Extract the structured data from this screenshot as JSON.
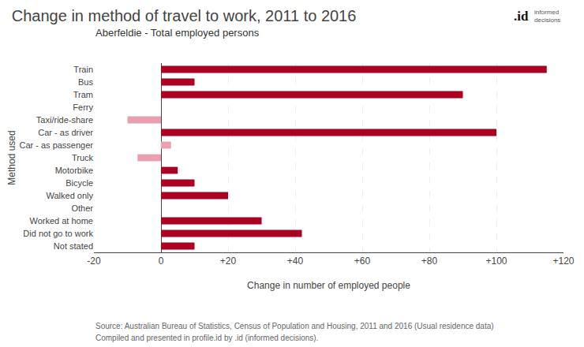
{
  "chart_data": {
    "type": "bar",
    "orientation": "horizontal",
    "title": "Change in method of travel to work, 2011 to 2016",
    "subtitle": "Aberfeldie - Total employed persons",
    "xlabel": "Change in number of employed people",
    "ylabel": "Method used",
    "annotations": [
      "Source: Australian Bureau of Statistics, Census of Population and Housing, 2011 and 2016 (Usual residence data)",
      "Compiled and presented in profile.id by .id (informed decisions).",
      ".id",
      "informed\ndecisions"
    ],
    "categories": [
      "Train",
      "Bus",
      "Tram",
      "Ferry",
      "Taxi/ride-share",
      "Car - as driver",
      "Car - as passenger",
      "Truck",
      "Motorbike",
      "Bicycle",
      "Walked only",
      "Other",
      "Worked at home",
      "Did not go to work",
      "Not stated"
    ],
    "values": [
      115,
      10,
      90,
      0,
      -10,
      100,
      3,
      -7,
      5,
      10,
      20,
      0,
      30,
      42,
      10
    ],
    "colors": [
      "#aa0022",
      "#aa0022",
      "#aa0022",
      "#aa0022",
      "#e8a0b0",
      "#aa0022",
      "#e8a0b0",
      "#e8a0b0",
      "#aa0022",
      "#aa0022",
      "#aa0022",
      "#aa0022",
      "#aa0022",
      "#aa0022",
      "#aa0022"
    ],
    "xlim": [
      -20,
      120
    ],
    "xticks": [
      -20,
      0,
      {
        "value": 20,
        "label": "+20"
      },
      {
        "value": 40,
        "label": "+40"
      },
      {
        "value": 60,
        "label": "+60"
      },
      {
        "value": 80,
        "label": "+80"
      },
      {
        "value": 100,
        "label": "+100"
      },
      {
        "value": 120,
        "label": "+120"
      }
    ],
    "grid": true
  }
}
